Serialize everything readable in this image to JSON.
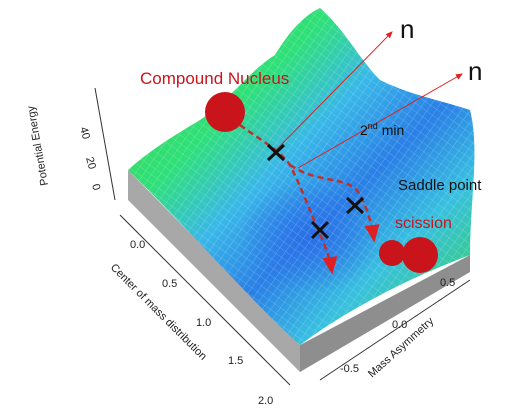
{
  "annotations": {
    "compound_nucleus": "Compound Nucleus",
    "second_min": {
      "number": "2",
      "suffix": "nd",
      "rest": " min"
    },
    "saddle_point": "Saddle point",
    "scission": "scission",
    "neutron_1": "n",
    "neutron_2": "n"
  },
  "axes": {
    "z": {
      "label": "Potential Energy",
      "ticks": [
        "40",
        "20",
        "0"
      ]
    },
    "y": {
      "label": "Center of mass distribution",
      "ticks": [
        "0.0",
        "0.5",
        "1.0",
        "1.5",
        "2.0"
      ]
    },
    "x": {
      "label": "Mass Asymmetry",
      "ticks": [
        "0.5",
        "0.0",
        "-0.5"
      ]
    }
  }
}
